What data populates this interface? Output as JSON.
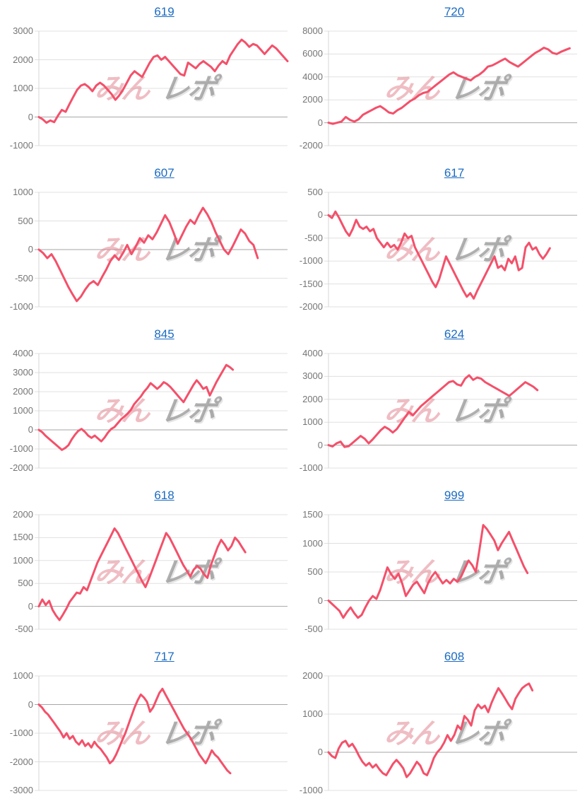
{
  "colors": {
    "line": "#f4506a",
    "title_link": "#1b6bc2",
    "tick_label": "#757575",
    "gridline": "#e0e0e0",
    "zero_line": "#a6a6a6",
    "axis_line": "#d4d4d4",
    "watermark_pink": "rgba(224,123,135,0.5)",
    "watermark_gray": "rgba(150,150,150,0.75)"
  },
  "watermark": {
    "pink_text": "みん",
    "gray_text": "レポ"
  },
  "chart_data": [
    {
      "type": "line",
      "title": "619",
      "ylim": [
        -1000,
        3000
      ],
      "yticks": [
        3000,
        2000,
        1000,
        0,
        -1000
      ],
      "x_fraction": 1.0,
      "values": [
        0,
        -80,
        -200,
        -120,
        -180,
        50,
        250,
        180,
        450,
        700,
        950,
        1100,
        1150,
        1050,
        900,
        1100,
        1200,
        1100,
        950,
        800,
        600,
        750,
        950,
        1200,
        1450,
        1600,
        1500,
        1400,
        1650,
        1900,
        2100,
        2150,
        2000,
        2100,
        1950,
        1800,
        1650,
        1500,
        1450,
        1900,
        1800,
        1700,
        1850,
        1950,
        1850,
        1750,
        1600,
        1800,
        1950,
        1850,
        2150,
        2350,
        2550,
        2700,
        2600,
        2450,
        2550,
        2500,
        2350,
        2200,
        2350,
        2500,
        2400,
        2250,
        2100,
        1950
      ]
    },
    {
      "type": "line",
      "title": "720",
      "ylim": [
        -2000,
        8000
      ],
      "yticks": [
        8000,
        6000,
        4000,
        2000,
        0,
        -2000
      ],
      "x_fraction": 0.97,
      "values": [
        0,
        -100,
        0,
        100,
        500,
        250,
        100,
        300,
        700,
        900,
        1100,
        1300,
        1450,
        1200,
        900,
        800,
        1100,
        1300,
        1600,
        1900,
        2100,
        2400,
        2600,
        2700,
        3000,
        3300,
        3600,
        3900,
        4200,
        4400,
        4150,
        4000,
        3850,
        3700,
        4000,
        4200,
        4500,
        4900,
        5000,
        5200,
        5400,
        5600,
        5300,
        5100,
        4900,
        5200,
        5500,
        5800,
        6100,
        6300,
        6550,
        6400,
        6100,
        6000,
        6200,
        6350,
        6500
      ]
    },
    {
      "type": "line",
      "title": "607",
      "ylim": [
        -1000,
        1000
      ],
      "yticks": [
        1000,
        500,
        0,
        -500,
        -1000
      ],
      "x_fraction": 0.88,
      "values": [
        0,
        -60,
        -150,
        -80,
        -200,
        -350,
        -500,
        -650,
        -780,
        -900,
        -820,
        -700,
        -600,
        -550,
        -620,
        -480,
        -350,
        -200,
        -100,
        -180,
        -60,
        80,
        -80,
        50,
        200,
        120,
        250,
        180,
        300,
        450,
        600,
        480,
        300,
        100,
        250,
        400,
        520,
        450,
        600,
        730,
        620,
        480,
        300,
        150,
        0,
        -80,
        50,
        200,
        350,
        280,
        150,
        80,
        -150
      ]
    },
    {
      "type": "line",
      "title": "617",
      "ylim": [
        -2000,
        500
      ],
      "yticks": [
        500,
        0,
        -500,
        -1000,
        -1500,
        -2000
      ],
      "x_fraction": 0.89,
      "values": [
        0,
        -60,
        80,
        -50,
        -200,
        -350,
        -450,
        -300,
        -100,
        -250,
        -300,
        -250,
        -350,
        -300,
        -500,
        -600,
        -700,
        -600,
        -700,
        -650,
        -750,
        -600,
        -400,
        -500,
        -450,
        -700,
        -850,
        -1000,
        -1150,
        -1300,
        -1450,
        -1570,
        -1400,
        -1150,
        -900,
        -1050,
        -1200,
        -1350,
        -1500,
        -1650,
        -1780,
        -1700,
        -1820,
        -1650,
        -1500,
        -1350,
        -1200,
        -1050,
        -900,
        -1150,
        -1100,
        -1200,
        -950,
        -1050,
        -900,
        -1200,
        -1150,
        -700,
        -600,
        -750,
        -700,
        -850,
        -950,
        -850,
        -720
      ]
    },
    {
      "type": "line",
      "title": "845",
      "ylim": [
        -2000,
        4000
      ],
      "yticks": [
        4000,
        3000,
        2000,
        1000,
        0,
        -1000,
        -2000
      ],
      "x_fraction": 0.78,
      "values": [
        0,
        -120,
        -300,
        -450,
        -600,
        -750,
        -900,
        -1050,
        -950,
        -800,
        -500,
        -250,
        -50,
        50,
        -100,
        -300,
        -420,
        -300,
        -450,
        -600,
        -400,
        -150,
        50,
        150,
        350,
        550,
        700,
        850,
        1050,
        1350,
        1550,
        1750,
        2000,
        2200,
        2450,
        2300,
        2150,
        2300,
        2500,
        2400,
        2250,
        2050,
        1850,
        1650,
        1450,
        1750,
        2050,
        2350,
        2600,
        2400,
        2150,
        2250,
        1800,
        2150,
        2500,
        2800,
        3100,
        3400,
        3300,
        3150
      ]
    },
    {
      "type": "line",
      "title": "624",
      "ylim": [
        -1000,
        4000
      ],
      "yticks": [
        4000,
        3000,
        2000,
        1000,
        0,
        -1000
      ],
      "x_fraction": 0.84,
      "values": [
        0,
        -60,
        80,
        150,
        -80,
        -50,
        100,
        250,
        400,
        280,
        80,
        250,
        450,
        650,
        800,
        700,
        550,
        700,
        950,
        1200,
        1450,
        1300,
        1500,
        1700,
        1850,
        2000,
        2150,
        2300,
        2450,
        2600,
        2750,
        2800,
        2650,
        2600,
        2900,
        3050,
        2850,
        2950,
        2900,
        2750,
        2650,
        2550,
        2450,
        2350,
        2250,
        2150,
        2300,
        2450,
        2600,
        2750,
        2650,
        2550,
        2400
      ]
    },
    {
      "type": "line",
      "title": "618",
      "ylim": [
        -500,
        2000
      ],
      "yticks": [
        2000,
        1500,
        1000,
        500,
        0,
        -500
      ],
      "x_fraction": 0.83,
      "values": [
        0,
        150,
        30,
        120,
        -80,
        -200,
        -300,
        -180,
        -50,
        100,
        200,
        300,
        280,
        420,
        350,
        550,
        750,
        950,
        1100,
        1250,
        1400,
        1550,
        1700,
        1600,
        1450,
        1300,
        1150,
        1000,
        850,
        700,
        550,
        420,
        600,
        800,
        1000,
        1200,
        1400,
        1600,
        1500,
        1350,
        1200,
        1050,
        900,
        780,
        650,
        800,
        880,
        820,
        700,
        620,
        900,
        1100,
        1300,
        1450,
        1350,
        1220,
        1320,
        1500,
        1420,
        1300,
        1180
      ]
    },
    {
      "type": "line",
      "title": "999",
      "ylim": [
        -500,
        1500
      ],
      "yticks": [
        1500,
        1000,
        500,
        0,
        -500
      ],
      "x_fraction": 0.8,
      "values": [
        0,
        -60,
        -120,
        -180,
        -300,
        -200,
        -120,
        -220,
        -300,
        -250,
        -120,
        0,
        80,
        30,
        180,
        380,
        580,
        460,
        380,
        470,
        300,
        80,
        180,
        280,
        330,
        230,
        130,
        300,
        420,
        500,
        400,
        300,
        360,
        300,
        380,
        330,
        420,
        560,
        700,
        620,
        500,
        900,
        1320,
        1250,
        1150,
        1050,
        880,
        1000,
        1100,
        1200,
        1050,
        900,
        750,
        600,
        480
      ]
    },
    {
      "type": "line",
      "title": "717",
      "ylim": [
        -3000,
        1000
      ],
      "yticks": [
        1000,
        0,
        -1000,
        -2000,
        -3000
      ],
      "x_fraction": 0.77,
      "values": [
        0,
        -100,
        -250,
        -350,
        -500,
        -650,
        -800,
        -950,
        -1150,
        -1000,
        -1200,
        -1100,
        -1300,
        -1400,
        -1250,
        -1450,
        -1350,
        -1500,
        -1300,
        -1450,
        -1550,
        -1700,
        -1850,
        -2050,
        -1950,
        -1750,
        -1500,
        -1250,
        -1000,
        -700,
        -400,
        -100,
        150,
        350,
        250,
        100,
        -250,
        -100,
        150,
        400,
        550,
        350,
        150,
        -50,
        -250,
        -450,
        -650,
        -850,
        -1000,
        -1150,
        -1350,
        -1550,
        -1750,
        -1900,
        -2050,
        -1850,
        -1600,
        -1750,
        -1850,
        -2000,
        -2150,
        -2300,
        -2400
      ]
    },
    {
      "type": "line",
      "title": "608",
      "ylim": [
        -1000,
        2000
      ],
      "yticks": [
        2000,
        1000,
        0,
        -1000
      ],
      "x_fraction": 0.82,
      "values": [
        0,
        -100,
        -150,
        100,
        250,
        300,
        150,
        220,
        80,
        -100,
        -250,
        -350,
        -280,
        -400,
        -320,
        -450,
        -550,
        -600,
        -450,
        -300,
        -200,
        -300,
        -420,
        -650,
        -550,
        -400,
        -250,
        -350,
        -550,
        -600,
        -400,
        -150,
        0,
        100,
        250,
        450,
        300,
        450,
        700,
        600,
        950,
        850,
        700,
        1100,
        1250,
        1150,
        1220,
        1050,
        1300,
        1500,
        1680,
        1550,
        1400,
        1250,
        1130,
        1400,
        1550,
        1680,
        1750,
        1800,
        1620
      ]
    }
  ]
}
